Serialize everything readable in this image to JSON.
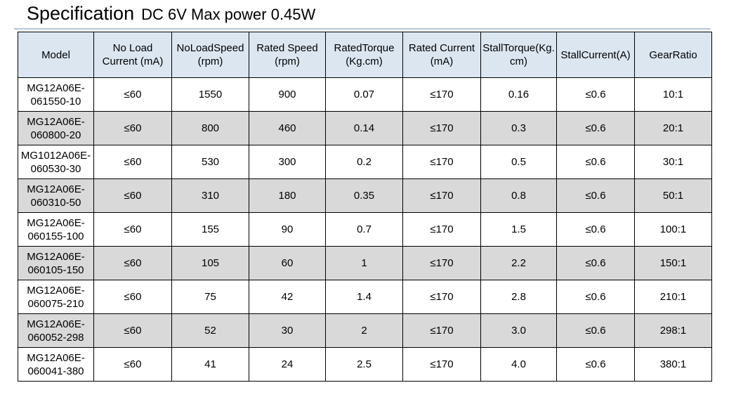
{
  "header": {
    "title": "Specification",
    "subtitle": "DC 6V Max power 0.45W"
  },
  "table": {
    "headers": [
      "Model",
      "No Load Current (mA)",
      "NoLoadSpeed (rpm)",
      "Rated Speed (rpm)",
      "RatedTorque (Kg.cm)",
      "Rated Current (mA)",
      "StallTorque(Kg.cm)",
      "StallCurrent(A)",
      "GearRatio"
    ],
    "rows": [
      [
        "MG12A06E-061550-10",
        "≤60",
        "1550",
        "900",
        "0.07",
        "≤170",
        "0.16",
        "≤0.6",
        "10:1"
      ],
      [
        "MG12A06E-060800-20",
        "≤60",
        "800",
        "460",
        "0.14",
        "≤170",
        "0.3",
        "≤0.6",
        "20:1"
      ],
      [
        "MG1012A06E-060530-30",
        "≤60",
        "530",
        "300",
        "0.2",
        "≤170",
        "0.5",
        "≤0.6",
        "30:1"
      ],
      [
        "MG12A06E-060310-50",
        "≤60",
        "310",
        "180",
        "0.35",
        "≤170",
        "0.8",
        "≤0.6",
        "50:1"
      ],
      [
        "MG12A06E-060155-100",
        "≤60",
        "155",
        "90",
        "0.7",
        "≤170",
        "1.5",
        "≤0.6",
        "100:1"
      ],
      [
        "MG12A06E-060105-150",
        "≤60",
        "105",
        "60",
        "1",
        "≤170",
        "2.2",
        "≤0.6",
        "150:1"
      ],
      [
        "MG12A06E-060075-210",
        "≤60",
        "75",
        "42",
        "1.4",
        "≤170",
        "2.8",
        "≤0.6",
        "210:1"
      ],
      [
        "MG12A06E-060052-298",
        "≤60",
        "52",
        "30",
        "2",
        "≤170",
        "3.0",
        "≤0.6",
        "298:1"
      ],
      [
        "MG12A06E-060041-380",
        "≤60",
        "41",
        "24",
        "2.5",
        "≤170",
        "4.0",
        "≤0.6",
        "380:1"
      ]
    ]
  }
}
